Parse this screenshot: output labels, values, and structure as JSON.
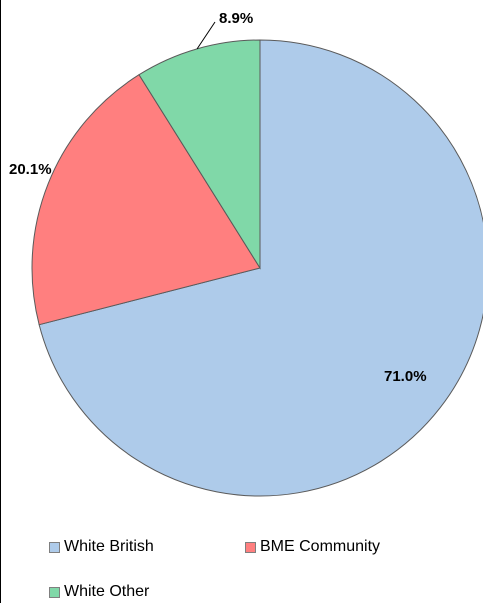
{
  "chart_data": {
    "type": "pie",
    "categories": [
      "White British",
      "BME Community",
      "White Other"
    ],
    "values": [
      71.0,
      20.1,
      8.9
    ],
    "labels": [
      "71.0%",
      "20.1%",
      "8.9%"
    ],
    "colors": [
      "#aecbea",
      "#ff7f7f",
      "#80d8a8"
    ],
    "legend": "bottom",
    "title": ""
  }
}
